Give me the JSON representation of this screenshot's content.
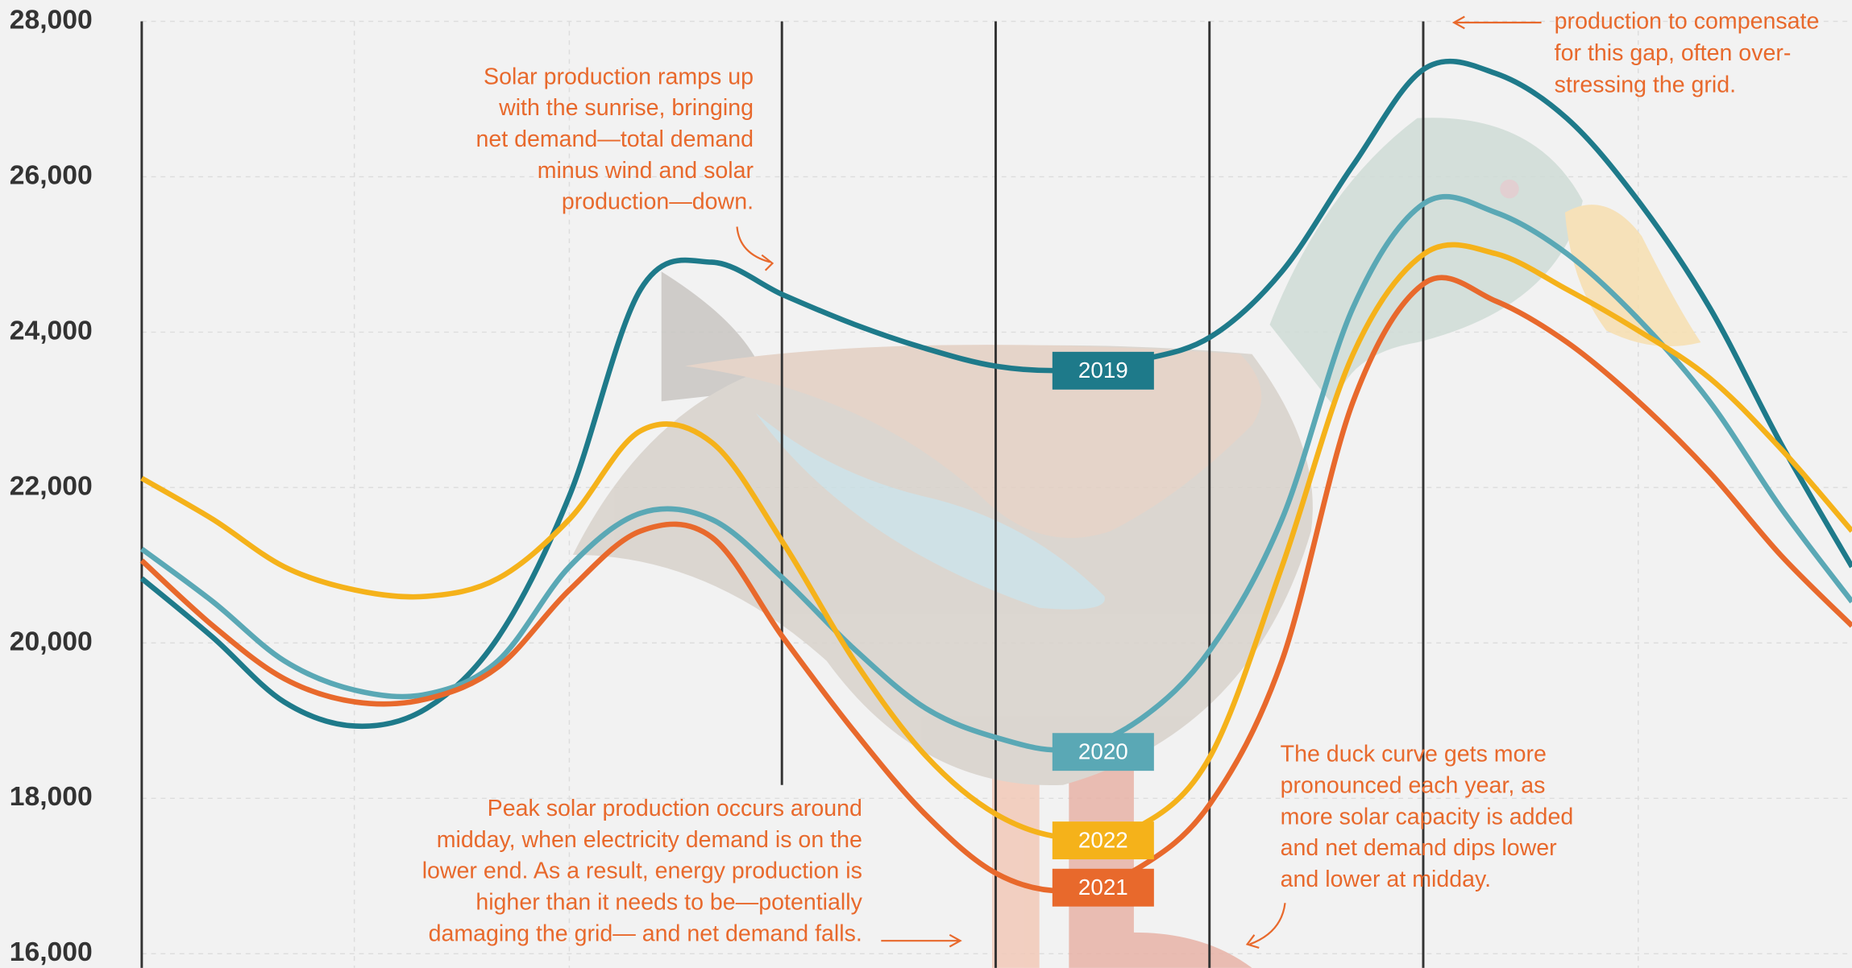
{
  "chart_data": {
    "type": "line",
    "categories": [
      null,
      null,
      null,
      null,
      null,
      null,
      null,
      null,
      null,
      null,
      null,
      null,
      null,
      null,
      null,
      null,
      null,
      null,
      null,
      null,
      null,
      null,
      null,
      null,
      null
    ],
    "series": [
      {
        "name": "2019",
        "color": "#1e7a8a",
        "values": [
          20830,
          20070,
          19240,
          18930,
          19160,
          20070,
          21890,
          24550,
          24900,
          24480,
          24100,
          23790,
          23560,
          23510,
          23640,
          23940,
          24780,
          26150,
          27390,
          27330,
          26750,
          25690,
          24320,
          22570,
          20980
        ]
      },
      {
        "name": "2020",
        "color": "#5aa8b5",
        "values": [
          21210,
          20530,
          19770,
          19390,
          19340,
          19770,
          20980,
          21670,
          21590,
          20830,
          19920,
          19160,
          18780,
          18630,
          19010,
          19920,
          21590,
          24320,
          25660,
          25540,
          25010,
          24170,
          23110,
          21740,
          20530
        ]
      },
      {
        "name": "2022",
        "color": "#f5b21a",
        "values": [
          22120,
          21590,
          20980,
          20680,
          20600,
          20830,
          21590,
          22730,
          22580,
          21290,
          19770,
          18550,
          17790,
          17490,
          17640,
          18550,
          20980,
          23720,
          25010,
          25010,
          24550,
          24020,
          23410,
          22500,
          21440
        ]
      },
      {
        "name": "2021",
        "color": "#e8692c",
        "values": [
          21060,
          20220,
          19540,
          19240,
          19280,
          19690,
          20680,
          21440,
          21360,
          20070,
          18860,
          17790,
          17030,
          16810,
          17110,
          17940,
          19770,
          23110,
          24630,
          24400,
          23870,
          23110,
          22200,
          21130,
          20220
        ]
      }
    ],
    "ylim": [
      16000,
      28000
    ],
    "yticks": [
      {
        "value": 16000,
        "label": "16,000"
      },
      {
        "value": 18000,
        "label": "18,000"
      },
      {
        "value": 20000,
        "label": "20,000"
      },
      {
        "value": 22000,
        "label": "22,000"
      },
      {
        "value": 24000,
        "label": "24,000"
      },
      {
        "value": 26000,
        "label": "26,000"
      },
      {
        "value": 28000,
        "label": "28,000"
      }
    ],
    "grid": true,
    "annotations": [
      [
        "Solar production ramps up",
        "with the sunrise, bringing",
        "net demand—total demand",
        "minus wind and solar",
        "production—down."
      ],
      [
        "Peak solar production occurs around",
        "midday, when electricity demand is on the",
        "lower end. As a result, energy production is",
        "higher than it needs to be—potentially",
        "damaging the grid— and net demand falls."
      ],
      [
        "The duck curve gets more",
        "pronounced each year, as",
        "more solar capacity is added",
        "and net demand dips lower",
        "and lower at midday."
      ],
      [
        "production to compensate",
        "for this gap, often over-",
        "stressing the grid."
      ]
    ]
  }
}
